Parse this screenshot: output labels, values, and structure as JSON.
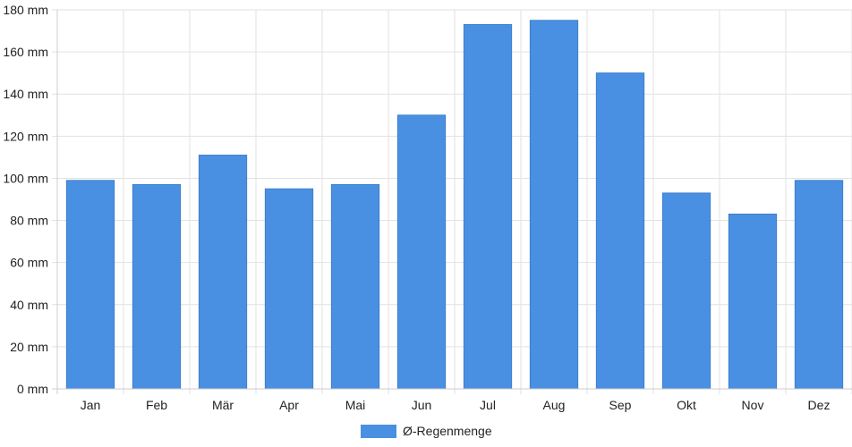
{
  "chart_data": {
    "type": "bar",
    "categories": [
      "Jan",
      "Feb",
      "Mär",
      "Apr",
      "Mai",
      "Jun",
      "Jul",
      "Aug",
      "Sep",
      "Okt",
      "Nov",
      "Dez"
    ],
    "series": [
      {
        "name": "Ø-Regenmenge",
        "color": "#4a90e2",
        "values": [
          99,
          97,
          111,
          95,
          97,
          130,
          173,
          175,
          150,
          93,
          83,
          99
        ]
      }
    ],
    "y_ticks": [
      "0 mm",
      "20 mm",
      "40 mm",
      "60 mm",
      "80 mm",
      "100 mm",
      "120 mm",
      "140 mm",
      "160 mm",
      "180 mm"
    ],
    "ylim": [
      0,
      180
    ],
    "y_unit": "mm",
    "grid": true,
    "legend_position": "bottom-center",
    "colors": {
      "bar": "#4a90e2",
      "grid": "#e2e2e2",
      "axis": "#cccccc",
      "text": "#222222"
    }
  }
}
